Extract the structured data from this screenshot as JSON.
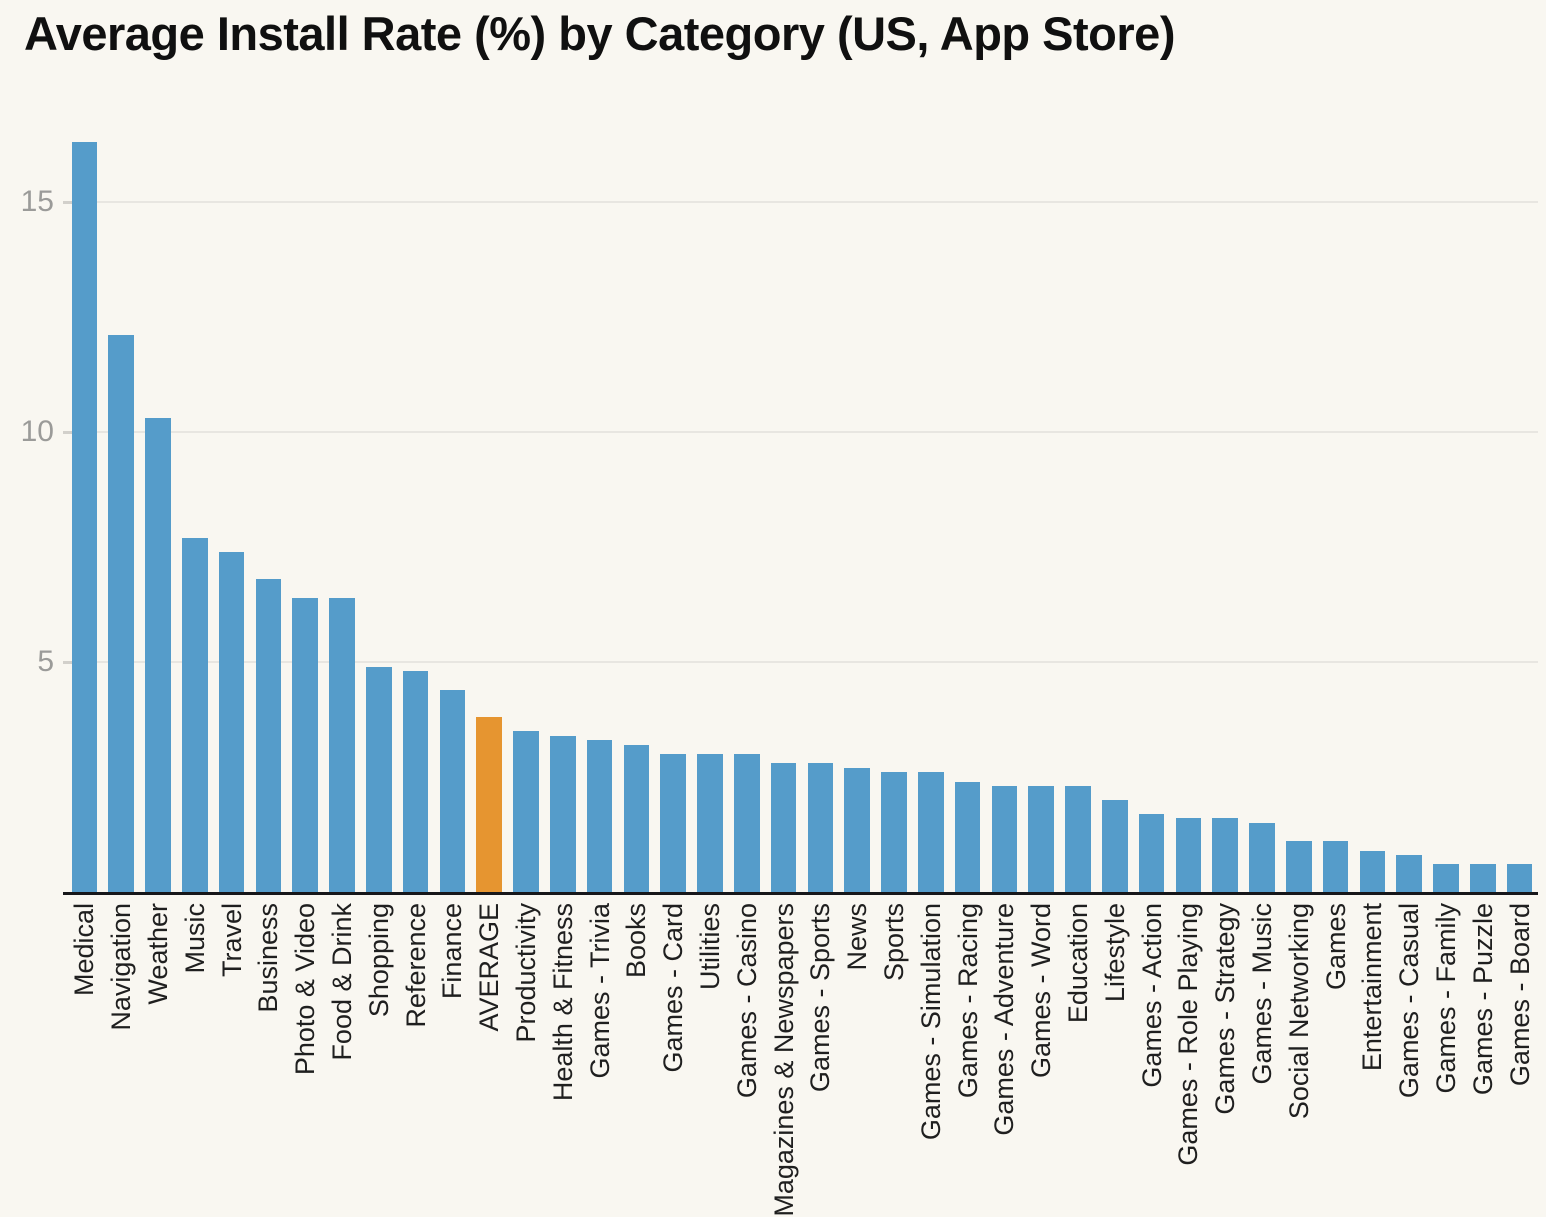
{
  "title": "Average Install Rate (%) by Category (US, App Store)",
  "chart_data": {
    "type": "bar",
    "title": "Average Install Rate (%) by Category (US, App Store)",
    "xlabel": "",
    "ylabel": "",
    "ylim": [
      0,
      16.5
    ],
    "y_ticks": [
      5,
      10,
      15
    ],
    "grid": true,
    "legend": false,
    "highlight_category": "AVERAGE",
    "categories": [
      "Medical",
      "Navigation",
      "Weather",
      "Music",
      "Travel",
      "Business",
      "Photo & Video",
      "Food & Drink",
      "Shopping",
      "Reference",
      "Finance",
      "AVERAGE",
      "Productivity",
      "Health & Fitness",
      "Games - Trivia",
      "Books",
      "Games - Card",
      "Utilities",
      "Games - Casino",
      "Magazines & Newspapers",
      "Games - Sports",
      "News",
      "Sports",
      "Games - Simulation",
      "Games - Racing",
      "Games - Adventure",
      "Games - Word",
      "Education",
      "Lifestyle",
      "Games - Action",
      "Games - Role Playing",
      "Games - Strategy",
      "Games - Music",
      "Social Networking",
      "Games",
      "Entertainment",
      "Games - Casual",
      "Games - Family",
      "Games - Puzzle",
      "Games - Board"
    ],
    "values": [
      16.3,
      12.1,
      10.3,
      7.7,
      7.4,
      6.8,
      6.4,
      6.4,
      4.9,
      4.8,
      4.4,
      3.8,
      3.5,
      3.4,
      3.3,
      3.2,
      3.0,
      3.0,
      3.0,
      2.8,
      2.8,
      2.7,
      2.6,
      2.6,
      2.4,
      2.3,
      2.3,
      2.3,
      2.0,
      1.7,
      1.6,
      1.6,
      1.5,
      1.1,
      1.1,
      0.9,
      0.8,
      0.6,
      0.6,
      0.6
    ],
    "colors": {
      "bar": "#559cca",
      "highlight": "#e69530",
      "background": "#f9f7f1",
      "gridline": "#e8e6e1",
      "axis_line": "#17171a",
      "tick_label": "#9b9b99",
      "category_label": "#1f1f1f"
    }
  }
}
